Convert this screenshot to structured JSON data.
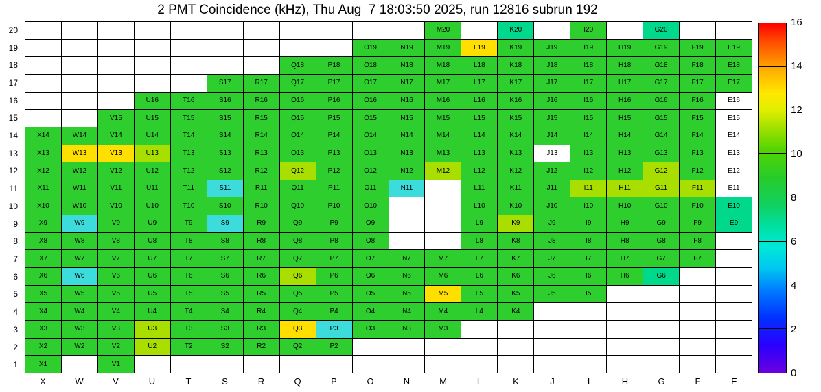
{
  "title": "2 PMT Coincidence (kHz), Thu Aug  7 18:03:50 2025, run 12816 subrun 192",
  "chart_data": {
    "type": "heatmap",
    "title": "2 PMT Coincidence (kHz), Thu Aug  7 18:03:50 2025, run 12816 subrun 192",
    "units": "kHz",
    "columns": [
      "X",
      "W",
      "V",
      "U",
      "T",
      "S",
      "R",
      "Q",
      "P",
      "O",
      "N",
      "M",
      "L",
      "K",
      "J",
      "I",
      "H",
      "G",
      "F",
      "E"
    ],
    "row_numbers": [
      20,
      19,
      18,
      17,
      16,
      15,
      14,
      13,
      12,
      11,
      10,
      9,
      8,
      7,
      6,
      5,
      4,
      3,
      2,
      1
    ],
    "palette": {
      "g": {
        "name": "green",
        "hex": "#2fce2f",
        "value": 9
      },
      "yg": {
        "name": "yellow-green",
        "hex": "#a8df00",
        "value": 11
      },
      "y": {
        "name": "yellow",
        "hex": "#ffdf00",
        "value": 13
      },
      "c": {
        "name": "cyan",
        "hex": "#3cdcdc",
        "value": 5
      },
      "s": {
        "name": "spring-green",
        "hex": "#00d98c",
        "value": 7
      },
      "w": {
        "name": "labeled-empty",
        "hex": "#ffffff",
        "value": null
      }
    },
    "rows": [
      {
        "y": 20,
        "cells": {
          "M": "g",
          "K": "s",
          "I": "g",
          "G": "s"
        }
      },
      {
        "y": 19,
        "cells": {
          "O": "g",
          "N": "g",
          "M": "g",
          "L": "y",
          "K": "g",
          "J": "g",
          "I": "g",
          "H": "g",
          "G": "g",
          "F": "g",
          "E": "g"
        }
      },
      {
        "y": 18,
        "cells": {
          "Q": "g",
          "P": "g",
          "O": "g",
          "N": "g",
          "M": "g",
          "L": "g",
          "K": "g",
          "J": "g",
          "I": "g",
          "H": "g",
          "G": "g",
          "F": "g",
          "E": "g"
        }
      },
      {
        "y": 17,
        "cells": {
          "S": "g",
          "R": "g",
          "Q": "g",
          "P": "g",
          "O": "g",
          "N": "g",
          "M": "g",
          "L": "g",
          "K": "g",
          "J": "g",
          "I": "g",
          "H": "g",
          "G": "g",
          "F": "g",
          "E": "g"
        }
      },
      {
        "y": 16,
        "cells": {
          "U": "g",
          "T": "g",
          "S": "g",
          "R": "g",
          "Q": "g",
          "P": "g",
          "O": "g",
          "N": "g",
          "M": "g",
          "L": "g",
          "K": "g",
          "J": "g",
          "I": "g",
          "H": "g",
          "G": "g",
          "F": "g",
          "E": "w"
        }
      },
      {
        "y": 15,
        "cells": {
          "V": "g",
          "U": "g",
          "T": "g",
          "S": "g",
          "R": "g",
          "Q": "g",
          "P": "g",
          "O": "g",
          "N": "g",
          "M": "g",
          "L": "g",
          "K": "g",
          "J": "g",
          "I": "g",
          "H": "g",
          "G": "g",
          "F": "g",
          "E": "w"
        }
      },
      {
        "y": 14,
        "cells": {
          "X": "g",
          "W": "g",
          "V": "g",
          "U": "g",
          "T": "g",
          "S": "g",
          "R": "g",
          "Q": "g",
          "P": "g",
          "O": "g",
          "N": "g",
          "M": "g",
          "L": "g",
          "K": "g",
          "J": "g",
          "I": "g",
          "H": "g",
          "G": "g",
          "F": "g",
          "E": "w"
        }
      },
      {
        "y": 13,
        "cells": {
          "X": "g",
          "W": "y",
          "V": "y",
          "U": "yg",
          "T": "g",
          "S": "g",
          "R": "g",
          "Q": "g",
          "P": "g",
          "O": "g",
          "N": "g",
          "M": "g",
          "L": "g",
          "K": "g",
          "J": "w",
          "I": "g",
          "H": "g",
          "G": "g",
          "F": "g",
          "E": "w"
        }
      },
      {
        "y": 12,
        "cells": {
          "X": "g",
          "W": "g",
          "V": "g",
          "U": "g",
          "T": "g",
          "S": "g",
          "R": "g",
          "Q": "yg",
          "P": "g",
          "O": "g",
          "N": "g",
          "M": "yg",
          "L": "g",
          "K": "g",
          "J": "g",
          "I": "g",
          "H": "g",
          "G": "yg",
          "F": "g",
          "E": "w"
        }
      },
      {
        "y": 11,
        "cells": {
          "X": "g",
          "W": "g",
          "V": "g",
          "U": "g",
          "T": "g",
          "S": "c",
          "R": "g",
          "Q": "g",
          "P": "g",
          "O": "g",
          "N": "c",
          "L": "g",
          "K": "g",
          "J": "g",
          "I": "yg",
          "H": "yg",
          "G": "yg",
          "F": "yg",
          "E": "w"
        }
      },
      {
        "y": 10,
        "cells": {
          "X": "g",
          "W": "g",
          "V": "g",
          "U": "g",
          "T": "g",
          "S": "g",
          "R": "g",
          "Q": "g",
          "P": "g",
          "O": "g",
          "L": "g",
          "K": "g",
          "J": "g",
          "I": "g",
          "H": "g",
          "G": "g",
          "F": "g",
          "E": "s"
        }
      },
      {
        "y": 9,
        "cells": {
          "X": "g",
          "W": "c",
          "V": "g",
          "U": "g",
          "T": "g",
          "S": "c",
          "R": "g",
          "Q": "g",
          "P": "g",
          "O": "g",
          "L": "g",
          "K": "yg",
          "J": "g",
          "I": "g",
          "H": "g",
          "G": "g",
          "F": "g",
          "E": "s"
        }
      },
      {
        "y": 8,
        "cells": {
          "X": "g",
          "W": "g",
          "V": "g",
          "U": "g",
          "T": "g",
          "S": "g",
          "R": "g",
          "Q": "g",
          "P": "g",
          "O": "g",
          "L": "g",
          "K": "g",
          "J": "g",
          "I": "g",
          "H": "g",
          "G": "g",
          "F": "g"
        }
      },
      {
        "y": 7,
        "cells": {
          "X": "g",
          "W": "g",
          "V": "g",
          "U": "g",
          "T": "g",
          "S": "g",
          "R": "g",
          "Q": "g",
          "P": "g",
          "O": "g",
          "N": "g",
          "M": "g",
          "L": "g",
          "K": "g",
          "J": "g",
          "I": "g",
          "H": "g",
          "G": "g",
          "F": "g"
        }
      },
      {
        "y": 6,
        "cells": {
          "X": "g",
          "W": "c",
          "V": "g",
          "U": "g",
          "T": "g",
          "S": "g",
          "R": "g",
          "Q": "yg",
          "P": "g",
          "O": "g",
          "N": "g",
          "M": "g",
          "L": "g",
          "K": "g",
          "J": "g",
          "I": "g",
          "H": "g",
          "G": "s"
        }
      },
      {
        "y": 5,
        "cells": {
          "X": "g",
          "W": "g",
          "V": "g",
          "U": "g",
          "T": "g",
          "S": "g",
          "R": "g",
          "Q": "g",
          "P": "g",
          "O": "g",
          "N": "g",
          "M": "y",
          "L": "g",
          "K": "g",
          "J": "g",
          "I": "g"
        }
      },
      {
        "y": 4,
        "cells": {
          "X": "g",
          "W": "g",
          "V": "g",
          "U": "g",
          "T": "g",
          "S": "g",
          "R": "g",
          "Q": "g",
          "P": "g",
          "O": "g",
          "N": "g",
          "M": "g",
          "L": "g",
          "K": "g"
        }
      },
      {
        "y": 3,
        "cells": {
          "X": "g",
          "W": "g",
          "V": "g",
          "U": "yg",
          "T": "g",
          "S": "g",
          "R": "g",
          "Q": "y",
          "P": "c",
          "O": "g",
          "N": "g",
          "M": "g"
        }
      },
      {
        "y": 2,
        "cells": {
          "X": "g",
          "W": "g",
          "V": "g",
          "U": "yg",
          "T": "g",
          "S": "g",
          "R": "g",
          "Q": "g",
          "P": "g"
        }
      },
      {
        "y": 1,
        "cells": {
          "X": "g",
          "V": "g"
        }
      }
    ],
    "colorbar": {
      "min": 0,
      "max": 16,
      "tick_labels": [
        0,
        2,
        4,
        6,
        8,
        10,
        12,
        14,
        16
      ],
      "inner_tick_values": [
        2,
        6,
        10,
        14
      ],
      "gradient_stops": [
        [
          "#6a00e0",
          0.0
        ],
        [
          "#2a00ff",
          0.08
        ],
        [
          "#0033ff",
          0.16
        ],
        [
          "#0080ff",
          0.24
        ],
        [
          "#00c8f0",
          0.3
        ],
        [
          "#00e8d8",
          0.36
        ],
        [
          "#00e0a0",
          0.42
        ],
        [
          "#10d060",
          0.48
        ],
        [
          "#28cc28",
          0.56
        ],
        [
          "#55d500",
          0.64
        ],
        [
          "#a0e000",
          0.7
        ],
        [
          "#e0ee00",
          0.75
        ],
        [
          "#ffe700",
          0.8
        ],
        [
          "#ffb400",
          0.86
        ],
        [
          "#ff7800",
          0.91
        ],
        [
          "#ff3c00",
          0.96
        ],
        [
          "#ff0000",
          1.0
        ]
      ]
    },
    "grid_lines": true,
    "legend_position": "right-colorbar"
  }
}
